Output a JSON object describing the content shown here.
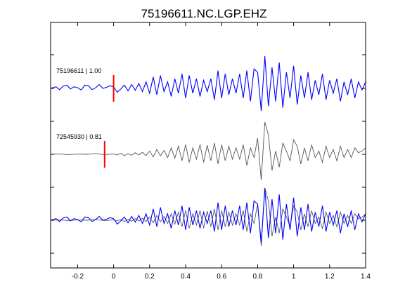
{
  "chart_data": {
    "type": "line",
    "title": "75196611.NC.LGP.EHZ",
    "xlabel": "",
    "ylabel": "",
    "xlim": [
      -0.35,
      1.4
    ],
    "ylim": [
      0,
      1
    ],
    "x_ticks": [
      -0.2,
      0,
      0.2,
      0.4,
      0.6,
      0.8,
      1,
      1.2,
      1.4
    ],
    "x_tick_labels": [
      "-0.2",
      "0",
      "0.2",
      "0.4",
      "0.6",
      "0.8",
      "1",
      "1.2",
      "1.4"
    ],
    "grid": false,
    "legend": "none",
    "colors": {
      "target": "#0000ff",
      "template": "#555555",
      "pick": "#ff0000",
      "axes": "#000000"
    },
    "traces": [
      {
        "label": "75196611 | 1.00",
        "pick_time": 0.0,
        "row": 1
      },
      {
        "label": "72545930 | 0.81",
        "pick_time": -0.05,
        "row": 2
      },
      {
        "label": "",
        "pick_time": null,
        "row": 3
      }
    ],
    "series": [
      {
        "color": "#0000ff",
        "x": [
          -0.35,
          -0.32,
          -0.3,
          -0.28,
          -0.26,
          -0.24,
          -0.22,
          -0.2,
          -0.18,
          -0.16,
          -0.14,
          -0.12,
          -0.1,
          -0.08,
          -0.06,
          -0.04,
          -0.02,
          0,
          0.02,
          0.04,
          0.06,
          0.08,
          0.1,
          0.12,
          0.14,
          0.16,
          0.18,
          0.2,
          0.22,
          0.24,
          0.26,
          0.28,
          0.3,
          0.32,
          0.34,
          0.36,
          0.38,
          0.4,
          0.42,
          0.44,
          0.46,
          0.48,
          0.5,
          0.52,
          0.54,
          0.56,
          0.58,
          0.6,
          0.62,
          0.64,
          0.66,
          0.68,
          0.7,
          0.72,
          0.74,
          0.76,
          0.78,
          0.8,
          0.82,
          0.84,
          0.86,
          0.88,
          0.9,
          0.92,
          0.94,
          0.96,
          0.98,
          1,
          1.02,
          1.04,
          1.06,
          1.08,
          1.1,
          1.12,
          1.14,
          1.16,
          1.18,
          1.2,
          1.22,
          1.24,
          1.26,
          1.28,
          1.3,
          1.32,
          1.34,
          1.36,
          1.38,
          1.4
        ],
        "y": [
          0,
          0.05,
          -0.04,
          0.07,
          0.1,
          -0.02,
          0.05,
          0.02,
          -0.05,
          0.1,
          0.08,
          -0.04,
          0.02,
          0.12,
          0,
          0.03,
          0.08,
          0.05,
          -0.12,
          -0.02,
          0.1,
          -0.08,
          0.12,
          -0.06,
          0.15,
          -0.1,
          0.2,
          -0.15,
          0.35,
          -0.2,
          0.4,
          -0.1,
          0.2,
          -0.25,
          0.3,
          -0.15,
          0.45,
          -0.3,
          0.4,
          -0.15,
          0.3,
          -0.25,
          0.25,
          -0.1,
          0.3,
          -0.35,
          0.55,
          -0.3,
          0.45,
          -0.2,
          0.3,
          -0.15,
          0.45,
          -0.3,
          0.55,
          -0.4,
          0.6,
          0.5,
          -0.7,
          1.0,
          -0.55,
          0.65,
          -0.4,
          0.8,
          -0.6,
          0.5,
          -0.3,
          0.7,
          -0.5,
          0.4,
          -0.3,
          0.5,
          -0.35,
          0.25,
          -0.2,
          0.45,
          -0.35,
          0.25,
          -0.15,
          0.3,
          -0.4,
          0.2,
          -0.2,
          0.3,
          -0.3,
          0.2,
          -0.05,
          0.2
        ],
        "row": 1
      },
      {
        "color": "#555555",
        "x": [
          -0.35,
          -0.3,
          -0.25,
          -0.2,
          -0.15,
          -0.1,
          -0.05,
          0,
          0.02,
          0.04,
          0.06,
          0.08,
          0.1,
          0.12,
          0.14,
          0.16,
          0.18,
          0.2,
          0.22,
          0.24,
          0.26,
          0.28,
          0.3,
          0.32,
          0.34,
          0.36,
          0.38,
          0.4,
          0.42,
          0.44,
          0.46,
          0.48,
          0.5,
          0.52,
          0.54,
          0.56,
          0.58,
          0.6,
          0.62,
          0.64,
          0.66,
          0.68,
          0.7,
          0.72,
          0.74,
          0.76,
          0.78,
          0.8,
          0.82,
          0.84,
          0.86,
          0.88,
          0.9,
          0.92,
          0.94,
          0.96,
          0.98,
          1,
          1.02,
          1.04,
          1.06,
          1.08,
          1.1,
          1.12,
          1.14,
          1.16,
          1.18,
          1.2,
          1.22,
          1.24,
          1.26,
          1.28,
          1.3,
          1.32,
          1.34,
          1.36,
          1.38,
          1.4
        ],
        "y": [
          0,
          0.01,
          -0.01,
          0.01,
          0,
          0.02,
          -0.01,
          0.01,
          -0.02,
          0.03,
          -0.04,
          0.02,
          -0.03,
          0.05,
          -0.02,
          0.06,
          -0.04,
          0.1,
          -0.08,
          0.15,
          -0.05,
          0.12,
          -0.1,
          0.2,
          -0.12,
          0.25,
          -0.2,
          0.3,
          -0.25,
          0.2,
          -0.15,
          0.3,
          -0.25,
          0.28,
          -0.2,
          0.35,
          -0.3,
          0.3,
          -0.2,
          0.25,
          -0.15,
          0.2,
          -0.15,
          0.3,
          -0.35,
          0.2,
          -0.1,
          0.5,
          -0.8,
          1.0,
          0.6,
          -0.5,
          0.1,
          -0.4,
          0.35,
          0.1,
          -0.2,
          0.45,
          0.25,
          -0.3,
          0.2,
          -0.2,
          0.3,
          -0.1,
          0.1,
          -0.25,
          0.25,
          -0.1,
          0.15,
          -0.2,
          0.25,
          -0.1,
          0.15,
          -0.1,
          0.2,
          0.05,
          0.1,
          0.2
        ],
        "row": 2
      },
      {
        "color": "#555555",
        "x": [
          -0.35,
          -0.3,
          -0.25,
          -0.2,
          -0.15,
          -0.1,
          -0.05,
          0,
          0.02,
          0.04,
          0.06,
          0.08,
          0.1,
          0.12,
          0.14,
          0.16,
          0.18,
          0.2,
          0.22,
          0.24,
          0.26,
          0.28,
          0.3,
          0.32,
          0.34,
          0.36,
          0.38,
          0.4,
          0.42,
          0.44,
          0.46,
          0.48,
          0.5,
          0.52,
          0.54,
          0.56,
          0.58,
          0.6,
          0.62,
          0.64,
          0.66,
          0.68,
          0.7,
          0.72,
          0.74,
          0.76,
          0.78,
          0.8,
          0.82,
          0.84,
          0.86,
          0.88,
          0.9,
          0.92,
          0.94,
          0.96,
          0.98,
          1,
          1.02,
          1.04,
          1.06,
          1.08,
          1.1,
          1.12,
          1.14,
          1.16,
          1.18,
          1.2,
          1.22,
          1.24,
          1.26,
          1.28,
          1.3,
          1.32,
          1.34,
          1.36,
          1.38,
          1.4
        ],
        "y": [
          0,
          0.01,
          -0.01,
          0.01,
          0,
          0.02,
          -0.01,
          0.01,
          -0.02,
          0.03,
          -0.04,
          0.02,
          -0.03,
          0.05,
          -0.02,
          0.06,
          -0.04,
          0.1,
          -0.08,
          0.15,
          -0.05,
          0.12,
          -0.1,
          0.2,
          -0.12,
          0.25,
          -0.2,
          0.3,
          -0.25,
          0.2,
          -0.15,
          0.3,
          -0.25,
          0.28,
          -0.2,
          0.35,
          -0.3,
          0.3,
          -0.2,
          0.25,
          -0.15,
          0.2,
          -0.15,
          0.3,
          -0.35,
          0.2,
          -0.1,
          0.5,
          -0.8,
          1.0,
          0.6,
          -0.5,
          0.1,
          -0.4,
          0.35,
          0.1,
          -0.2,
          0.45,
          0.25,
          -0.3,
          0.2,
          -0.2,
          0.3,
          -0.1,
          0.1,
          -0.25,
          0.25,
          -0.1,
          0.15,
          -0.2,
          0.25,
          -0.1,
          0.15,
          -0.1,
          0.2,
          0.05,
          0.1,
          0.2
        ],
        "row": 3
      },
      {
        "color": "#0000ff",
        "x": [
          -0.35,
          -0.32,
          -0.3,
          -0.28,
          -0.26,
          -0.24,
          -0.22,
          -0.2,
          -0.18,
          -0.16,
          -0.14,
          -0.12,
          -0.1,
          -0.08,
          -0.06,
          -0.04,
          -0.02,
          0,
          0.02,
          0.04,
          0.06,
          0.08,
          0.1,
          0.12,
          0.14,
          0.16,
          0.18,
          0.2,
          0.22,
          0.24,
          0.26,
          0.28,
          0.3,
          0.32,
          0.34,
          0.36,
          0.38,
          0.4,
          0.42,
          0.44,
          0.46,
          0.48,
          0.5,
          0.52,
          0.54,
          0.56,
          0.58,
          0.6,
          0.62,
          0.64,
          0.66,
          0.68,
          0.7,
          0.72,
          0.74,
          0.76,
          0.78,
          0.8,
          0.82,
          0.84,
          0.86,
          0.88,
          0.9,
          0.92,
          0.94,
          0.96,
          0.98,
          1,
          1.02,
          1.04,
          1.06,
          1.08,
          1.1,
          1.12,
          1.14,
          1.16,
          1.18,
          1.2,
          1.22,
          1.24,
          1.26,
          1.28,
          1.3,
          1.32,
          1.34,
          1.36,
          1.38,
          1.4
        ],
        "y": [
          0,
          0.05,
          -0.04,
          0.07,
          0.1,
          -0.02,
          0.05,
          0.02,
          -0.05,
          0.1,
          0.08,
          -0.04,
          0.02,
          0.12,
          0,
          0.03,
          0.08,
          0.05,
          -0.12,
          -0.02,
          0.1,
          -0.08,
          0.12,
          -0.06,
          0.15,
          -0.1,
          0.2,
          -0.15,
          0.35,
          -0.2,
          0.4,
          -0.1,
          0.2,
          -0.25,
          0.3,
          -0.15,
          0.45,
          -0.3,
          0.4,
          -0.15,
          0.3,
          -0.25,
          0.25,
          -0.1,
          0.3,
          -0.35,
          0.55,
          -0.3,
          0.45,
          -0.2,
          0.3,
          -0.15,
          0.45,
          -0.3,
          0.55,
          -0.4,
          0.6,
          0.5,
          -0.7,
          1.0,
          -0.55,
          0.65,
          -0.4,
          0.8,
          -0.6,
          0.5,
          -0.3,
          0.7,
          -0.5,
          0.4,
          -0.3,
          0.5,
          -0.35,
          0.25,
          -0.2,
          0.45,
          -0.35,
          0.25,
          -0.15,
          0.3,
          -0.4,
          0.2,
          -0.2,
          0.3,
          -0.3,
          0.2,
          -0.05,
          0.2
        ],
        "row": 3
      }
    ]
  }
}
